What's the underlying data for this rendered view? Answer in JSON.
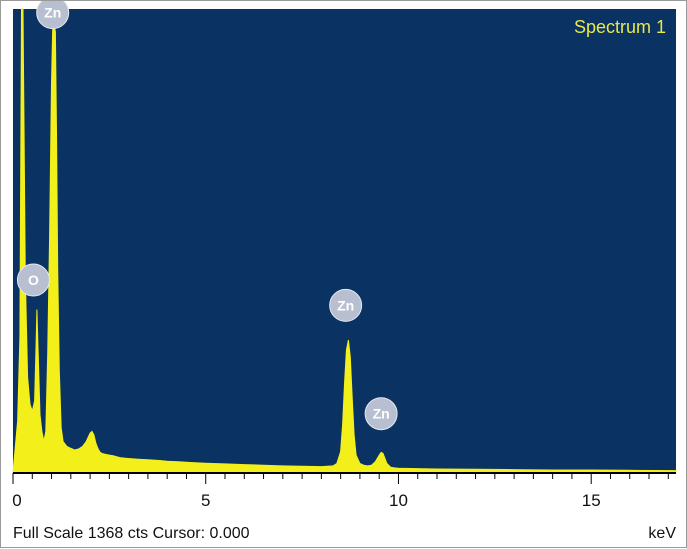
{
  "chart_data": {
    "type": "line",
    "title": "Spectrum 1",
    "xlabel": "keV",
    "xlim": [
      0,
      17.2
    ],
    "ylim": [
      0,
      1368
    ],
    "x_ticks": [
      0,
      5,
      10,
      15
    ],
    "x_tick_labels": [
      "0",
      "5",
      "10",
      "15"
    ],
    "grid": false,
    "series": [
      {
        "name": "Spectrum 1",
        "x": [
          0.0,
          0.12,
          0.18,
          0.22,
          0.26,
          0.32,
          0.38,
          0.44,
          0.5,
          0.56,
          0.6,
          0.62,
          0.65,
          0.7,
          0.75,
          0.8,
          0.85,
          0.9,
          0.95,
          1.0,
          1.03,
          1.06,
          1.1,
          1.13,
          1.16,
          1.2,
          1.25,
          1.3,
          1.4,
          1.5,
          1.6,
          1.7,
          1.8,
          1.9,
          2.0,
          2.05,
          2.1,
          2.15,
          2.2,
          2.25,
          2.3,
          2.4,
          2.5,
          2.6,
          2.7,
          2.8,
          3.0,
          3.2,
          3.5,
          3.8,
          4.0,
          4.3,
          4.6,
          5.0,
          5.5,
          6.0,
          6.5,
          7.0,
          7.5,
          8.0,
          8.3,
          8.4,
          8.5,
          8.55,
          8.6,
          8.65,
          8.7,
          8.75,
          8.8,
          8.85,
          8.9,
          9.0,
          9.1,
          9.2,
          9.3,
          9.4,
          9.5,
          9.55,
          9.6,
          9.65,
          9.7,
          9.8,
          9.9,
          10.0,
          10.5,
          11.0,
          12.0,
          13.0,
          14.0,
          15.0,
          16.0,
          17.2
        ],
        "y": [
          0,
          150,
          400,
          1368,
          1368,
          580,
          280,
          200,
          180,
          210,
          380,
          480,
          360,
          170,
          120,
          90,
          120,
          350,
          700,
          1150,
          1310,
          1330,
          1300,
          980,
          600,
          300,
          130,
          90,
          75,
          70,
          65,
          68,
          75,
          90,
          115,
          120,
          110,
          85,
          70,
          60,
          55,
          52,
          50,
          48,
          45,
          42,
          40,
          38,
          36,
          34,
          32,
          30,
          28,
          26,
          24,
          22,
          20,
          18,
          17,
          16,
          18,
          25,
          60,
          140,
          260,
          360,
          390,
          340,
          220,
          110,
          50,
          25,
          20,
          18,
          20,
          30,
          50,
          58,
          55,
          40,
          25,
          14,
          12,
          11,
          10,
          9,
          8,
          7,
          6,
          6,
          5,
          4
        ]
      }
    ],
    "annotations": [
      {
        "label": "Zn",
        "x": 1.03,
        "y": 1310
      },
      {
        "label": "O",
        "x": 0.53,
        "y": 520
      },
      {
        "label": "Zn",
        "x": 8.63,
        "y": 445
      },
      {
        "label": "Zn",
        "x": 9.55,
        "y": 125
      }
    ],
    "background_color": "#0a3262",
    "series_color": "#f2ef1a",
    "title_color": "#e8e84a",
    "annotation_color": "#b7bfd0"
  },
  "footer": {
    "info": "Full Scale 1368 cts Cursor: 0.000",
    "unit": "keV"
  }
}
